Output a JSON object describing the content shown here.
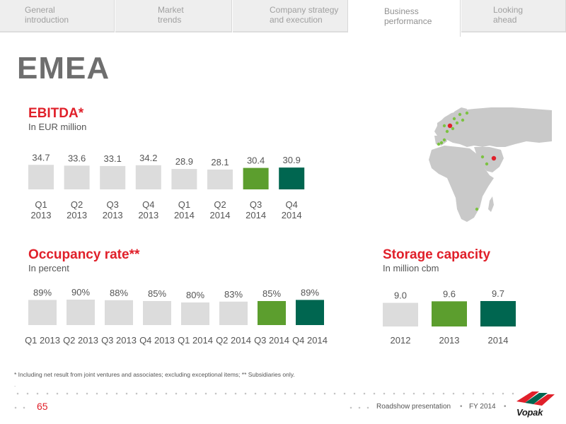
{
  "tabs": [
    {
      "label": "General\nintroduction",
      "active": false
    },
    {
      "label": "Market\ntrends",
      "active": false
    },
    {
      "label": "Company strategy\nand execution",
      "active": false
    },
    {
      "label": "Business\nperformance",
      "active": true
    },
    {
      "label": "Looking\nahead",
      "active": false
    }
  ],
  "page_title": "EMEA",
  "ebitda": {
    "title": "EBITDA*",
    "subtitle": "In EUR million"
  },
  "occupancy": {
    "title": "Occupancy rate**",
    "subtitle": "In percent"
  },
  "storage": {
    "title": "Storage capacity",
    "subtitle": "In million cbm"
  },
  "chart_data": [
    {
      "type": "bar",
      "title": "EBITDA*",
      "subtitle": "In EUR million",
      "categories": [
        "Q1\n2013",
        "Q2\n2013",
        "Q3\n2013",
        "Q4\n2013",
        "Q1\n2014",
        "Q2\n2014",
        "Q3\n2014",
        "Q4\n2014"
      ],
      "values": [
        34.7,
        33.6,
        33.1,
        34.2,
        28.9,
        28.1,
        30.4,
        30.9
      ],
      "value_labels": [
        "34.7",
        "33.6",
        "33.1",
        "34.2",
        "28.9",
        "28.1",
        "30.4",
        "30.9"
      ],
      "bar_colors": [
        "#dcdcdc",
        "#dcdcdc",
        "#dcdcdc",
        "#dcdcdc",
        "#dcdcdc",
        "#dcdcdc",
        "#5c9e2e",
        "#006650"
      ],
      "ylim": [
        0,
        35
      ]
    },
    {
      "type": "bar",
      "title": "Occupancy rate**",
      "subtitle": "In percent",
      "categories": [
        "Q1 2013",
        "Q2 2013",
        "Q3 2013",
        "Q4 2013",
        "Q1 2014",
        "Q2 2014",
        "Q3 2014",
        "Q4 2014"
      ],
      "values": [
        89,
        90,
        88,
        85,
        80,
        83,
        85,
        89
      ],
      "value_labels": [
        "89%",
        "90%",
        "88%",
        "85%",
        "80%",
        "83%",
        "85%",
        "89%"
      ],
      "bar_colors": [
        "#dcdcdc",
        "#dcdcdc",
        "#dcdcdc",
        "#dcdcdc",
        "#dcdcdc",
        "#dcdcdc",
        "#5c9e2e",
        "#006650"
      ],
      "ylim": [
        0,
        90
      ]
    },
    {
      "type": "bar",
      "title": "Storage capacity",
      "subtitle": "In million cbm",
      "categories": [
        "2012",
        "2013",
        "2014"
      ],
      "values": [
        9.0,
        9.6,
        9.7
      ],
      "value_labels": [
        "9.0",
        "9.6",
        "9.7"
      ],
      "bar_colors": [
        "#dcdcdc",
        "#5c9e2e",
        "#006650"
      ],
      "ylim": [
        0,
        9.7
      ]
    }
  ],
  "footnote": "* Including net result from joint ventures and associates; excluding exceptional items; ** Subsidiaries only.",
  "footnote_mark": ".",
  "footer": {
    "page_number": "65",
    "label": "Roadshow presentation",
    "separator": "•",
    "period": "FY 2014",
    "brand": "Vopak"
  },
  "colors": {
    "accent_red": "#e0202a",
    "green": "#5c9e2e",
    "dark_green": "#006650",
    "grey_bar": "#dcdcdc"
  }
}
